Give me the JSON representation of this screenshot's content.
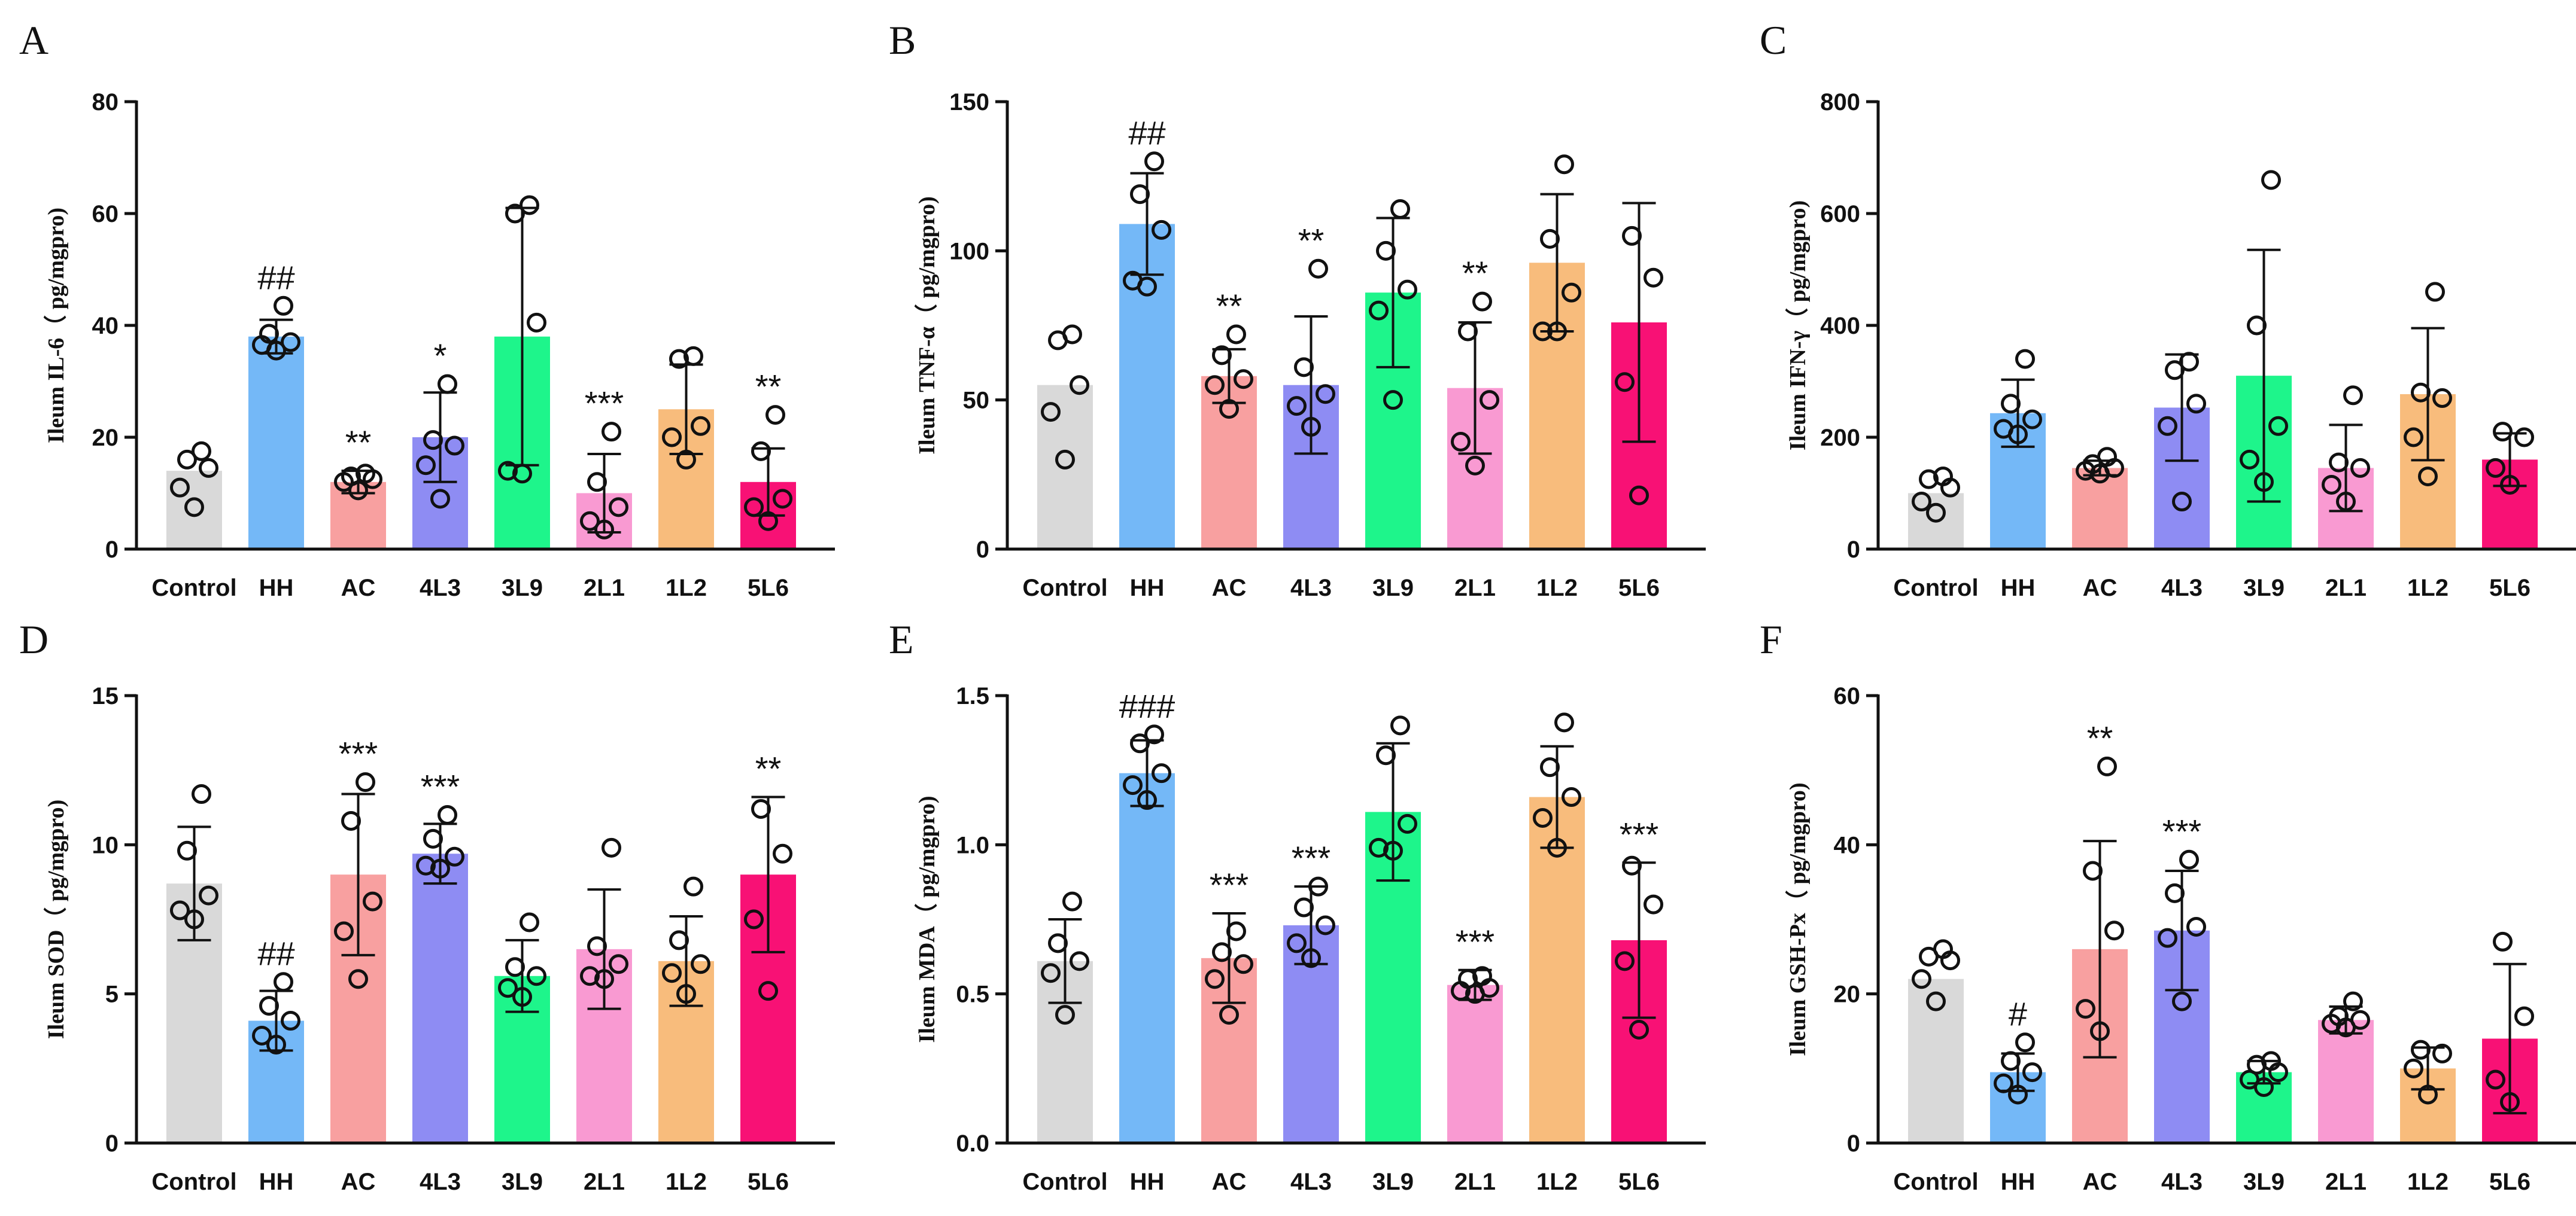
{
  "colors": {
    "Control": "#d9d9d9",
    "HH": "#74b8f7",
    "AC": "#f8a0a0",
    "4L3": "#8e8cf3",
    "3L9": "#1ef58b",
    "2L1": "#f99ad2",
    "1L2": "#f8bc7c",
    "5L6": "#f81175"
  },
  "chart_data": [
    {
      "type": "bar",
      "panel": "A",
      "ylabel": "Ileum IL-6（ pg/mgpro)",
      "ylim": [
        0,
        80
      ],
      "ticks": [
        0,
        20,
        40,
        60,
        80
      ],
      "tick_labels": [
        "0",
        "20",
        "40",
        "60",
        "80"
      ],
      "categories": [
        "Control",
        "HH",
        "AC",
        "4L3",
        "3L9",
        "2L1",
        "1L2",
        "5L6"
      ],
      "values": [
        14,
        38,
        12,
        20,
        38,
        10,
        25,
        12
      ],
      "sd": [
        0,
        3,
        2,
        8,
        23,
        7,
        8,
        6
      ],
      "points": [
        [
          7.5,
          11,
          14.5,
          16,
          17.5
        ],
        [
          35.5,
          36.5,
          37,
          38.5,
          43.5
        ],
        [
          10.5,
          12,
          12.5,
          13,
          13.5
        ],
        [
          9,
          15,
          18.5,
          19.5,
          29.5
        ],
        [
          13.5,
          14,
          40.5,
          60,
          61.5
        ],
        [
          3.5,
          5,
          7.5,
          12,
          21
        ],
        [
          16,
          20,
          22,
          34,
          34.5
        ],
        [
          5,
          7.5,
          9,
          17.5,
          24
        ]
      ],
      "annotations": [
        "",
        "##",
        "**",
        "*",
        "",
        "***",
        "",
        "**"
      ]
    },
    {
      "type": "bar",
      "panel": "B",
      "ylabel": "Ileum TNF-α（ pg/mgpro)",
      "ylim": [
        0,
        150
      ],
      "ticks": [
        0,
        50,
        100,
        150
      ],
      "tick_labels": [
        "0",
        "50",
        "100",
        "150"
      ],
      "categories": [
        "Control",
        "HH",
        "AC",
        "4L3",
        "3L9",
        "2L1",
        "1L2",
        "5L6"
      ],
      "values": [
        55,
        109,
        58,
        55,
        86,
        54,
        96,
        76
      ],
      "sd": [
        0,
        17,
        9,
        23,
        25,
        22,
        23,
        40
      ],
      "points": [
        [
          30,
          46,
          55,
          70,
          72
        ],
        [
          88,
          90,
          107,
          119,
          130
        ],
        [
          47,
          55,
          57,
          65,
          72
        ],
        [
          41,
          48,
          52,
          61,
          94
        ],
        [
          50,
          80,
          87,
          100,
          114
        ],
        [
          28,
          36,
          50,
          73,
          83
        ],
        [
          73,
          73,
          86,
          104,
          129
        ],
        [
          18,
          56,
          91,
          105
        ]
      ],
      "annotations": [
        "",
        "##",
        "**",
        "**",
        "",
        "**",
        "",
        ""
      ]
    },
    {
      "type": "bar",
      "panel": "C",
      "ylabel": "Ileum IFN-γ（ pg/mgpro)",
      "ylim": [
        0,
        800
      ],
      "ticks": [
        0,
        200,
        400,
        600,
        800
      ],
      "tick_labels": [
        "0",
        "200",
        "400",
        "600",
        "800"
      ],
      "categories": [
        "Control",
        "HH",
        "AC",
        "4L3",
        "3L9",
        "2L1",
        "1L2",
        "5L6"
      ],
      "values": [
        100,
        243,
        145,
        253,
        310,
        145,
        277,
        160
      ],
      "sd": [
        0,
        60,
        13,
        95,
        225,
        77,
        118,
        47
      ],
      "points": [
        [
          65,
          85,
          110,
          125,
          130
        ],
        [
          205,
          215,
          232,
          260,
          340
        ],
        [
          135,
          140,
          145,
          152,
          165
        ],
        [
          85,
          220,
          260,
          320,
          335
        ],
        [
          120,
          160,
          220,
          400,
          660
        ],
        [
          85,
          115,
          145,
          155,
          275
        ],
        [
          130,
          200,
          270,
          280,
          460
        ],
        [
          115,
          145,
          200,
          210
        ]
      ],
      "annotations": [
        "",
        "",
        "",
        "",
        "",
        "",
        "",
        ""
      ]
    },
    {
      "type": "bar",
      "panel": "D",
      "ylabel": "Ileum SOD（ pg/mgpro)",
      "ylim": [
        0,
        15
      ],
      "ticks": [
        0,
        5,
        10,
        15
      ],
      "tick_labels": [
        "0",
        "5",
        "10",
        "15"
      ],
      "categories": [
        "Control",
        "HH",
        "AC",
        "4L3",
        "3L9",
        "2L1",
        "1L2",
        "5L6"
      ],
      "values": [
        8.7,
        4.1,
        9.0,
        9.7,
        5.6,
        6.5,
        6.1,
        9.0
      ],
      "sd": [
        1.9,
        1.0,
        2.7,
        1.0,
        1.2,
        2.0,
        1.5,
        2.6
      ],
      "points": [
        [
          7.5,
          7.8,
          8.3,
          9.8,
          11.7
        ],
        [
          3.3,
          3.6,
          4.1,
          4.6,
          5.4
        ],
        [
          5.5,
          7.1,
          8.1,
          10.8,
          12.1
        ],
        [
          9.2,
          9.3,
          9.6,
          10.2,
          11.0
        ],
        [
          4.9,
          5.2,
          5.6,
          5.9,
          7.4
        ],
        [
          5.5,
          5.6,
          6.0,
          6.6,
          9.9
        ],
        [
          5.0,
          5.7,
          6.0,
          6.8,
          8.6
        ],
        [
          5.1,
          7.5,
          9.7,
          11.2
        ]
      ],
      "annotations": [
        "",
        "##",
        "***",
        "***",
        "",
        "",
        "",
        "**"
      ]
    },
    {
      "type": "bar",
      "panel": "E",
      "ylabel": "Ileum MDA（ pg/mgpro)",
      "ylim": [
        0,
        1.5
      ],
      "ticks": [
        0,
        0.5,
        1.0,
        1.5
      ],
      "tick_labels": [
        "0.0",
        "0.5",
        "1.0",
        "1.5"
      ],
      "categories": [
        "Control",
        "HH",
        "AC",
        "4L3",
        "3L9",
        "2L1",
        "1L2",
        "5L6"
      ],
      "values": [
        0.61,
        1.24,
        0.62,
        0.73,
        1.11,
        0.53,
        1.16,
        0.68
      ],
      "sd": [
        0.14,
        0.11,
        0.15,
        0.13,
        0.23,
        0.05,
        0.17,
        0.26
      ],
      "points": [
        [
          0.43,
          0.57,
          0.61,
          0.67,
          0.81
        ],
        [
          1.15,
          1.2,
          1.24,
          1.34,
          1.37
        ],
        [
          0.43,
          0.55,
          0.6,
          0.64,
          0.71
        ],
        [
          0.62,
          0.67,
          0.73,
          0.79,
          0.86
        ],
        [
          0.98,
          0.99,
          1.07,
          1.3,
          1.4
        ],
        [
          0.5,
          0.51,
          0.52,
          0.55,
          0.56
        ],
        [
          0.99,
          1.09,
          1.16,
          1.26,
          1.41
        ],
        [
          0.38,
          0.61,
          0.8,
          0.93
        ]
      ],
      "annotations": [
        "",
        "###",
        "***",
        "***",
        "",
        "***",
        "",
        "***"
      ]
    },
    {
      "type": "bar",
      "panel": "F",
      "ylabel": "Ileum GSH-Px（ pg/mgpro)",
      "ylim": [
        0,
        60
      ],
      "ticks": [
        0,
        20,
        40,
        60
      ],
      "tick_labels": [
        "0",
        "20",
        "40",
        "60"
      ],
      "categories": [
        "Control",
        "HH",
        "AC",
        "4L3",
        "3L9",
        "2L1",
        "1L2",
        "5L6"
      ],
      "values": [
        22,
        9.5,
        26,
        28.5,
        9.5,
        16.5,
        10,
        14
      ],
      "sd": [
        0,
        2.5,
        14.5,
        8,
        1.5,
        1.8,
        2.8,
        10
      ],
      "points": [
        [
          19,
          22,
          24.5,
          25,
          26
        ],
        [
          6.5,
          8,
          9.5,
          11,
          13.5
        ],
        [
          15,
          18,
          28.5,
          36.5,
          50.5
        ],
        [
          19,
          27.5,
          29,
          33.5,
          38
        ],
        [
          7.5,
          8.5,
          9.5,
          10.5,
          11
        ],
        [
          15.5,
          16,
          16.5,
          17,
          19
        ],
        [
          6.5,
          10,
          12,
          12.5
        ],
        [
          5.5,
          8.5,
          17,
          27
        ]
      ],
      "annotations": [
        "",
        "#",
        "**",
        "***",
        "",
        "",
        "",
        ""
      ]
    }
  ]
}
